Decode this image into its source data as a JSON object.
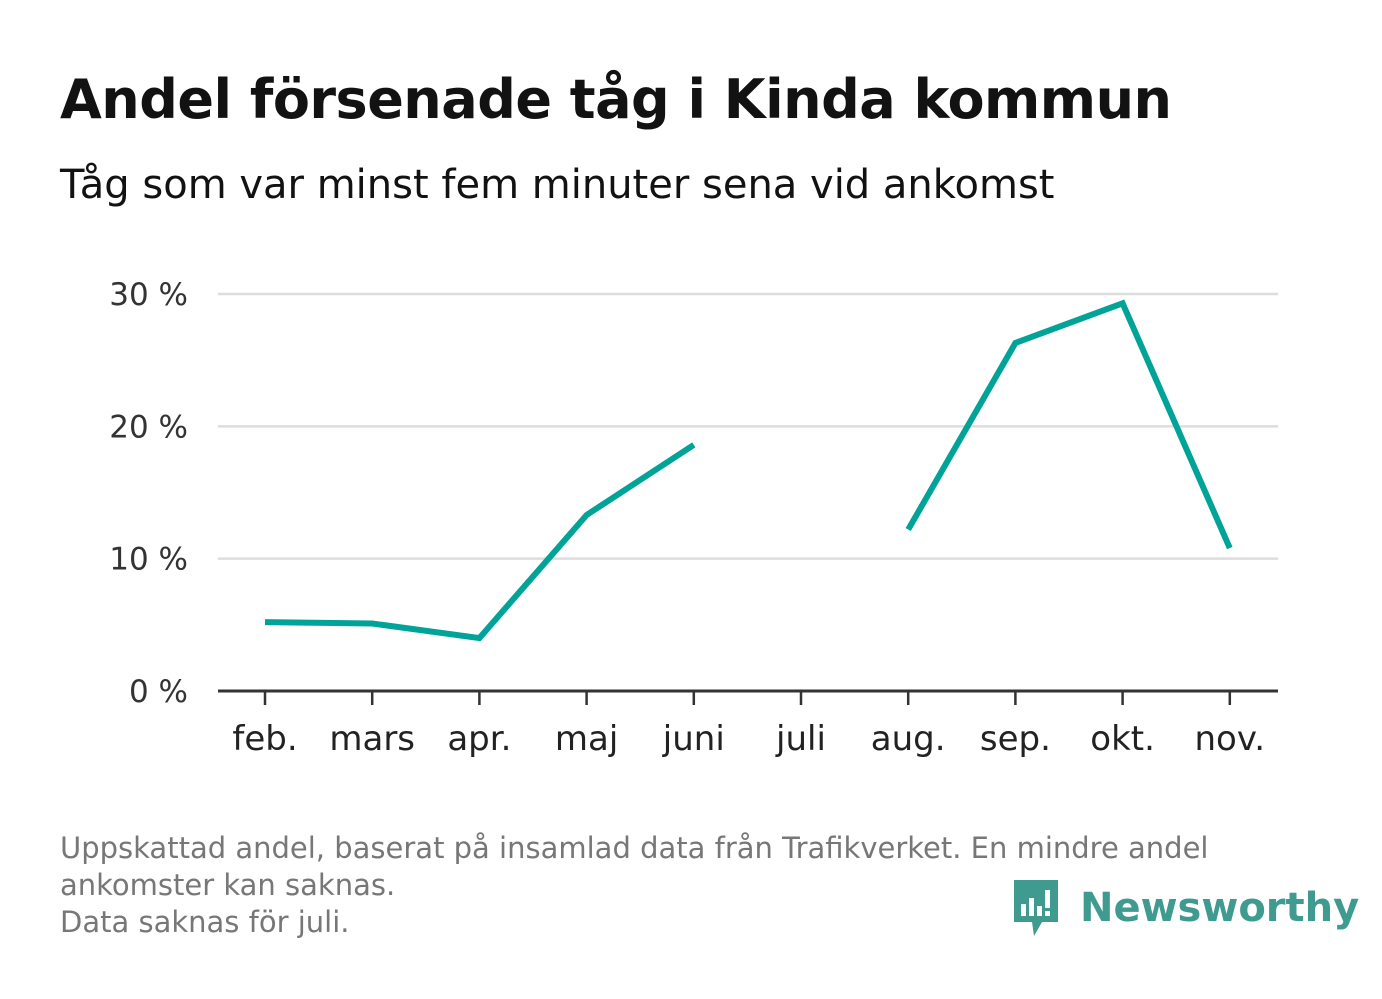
{
  "header": {
    "title": "Andel försenade tåg i Kinda kommun",
    "subtitle": "Tåg som var minst fem minuter sena vid ankomst"
  },
  "chart_data": {
    "type": "line",
    "title": "Andel försenade tåg i Kinda kommun",
    "subtitle": "Tåg som var minst fem minuter sena vid ankomst",
    "xlabel": "",
    "ylabel": "",
    "categories": [
      "feb.",
      "mars",
      "apr.",
      "maj",
      "juni",
      "juli",
      "aug.",
      "sep.",
      "okt.",
      "nov."
    ],
    "series": [
      {
        "values": [
          5.2,
          5.1,
          4.0,
          13.3,
          18.6,
          null,
          12.2,
          26.3,
          29.3,
          10.8
        ],
        "color": "#00a398"
      }
    ],
    "y_ticks": [
      0,
      10,
      20,
      30
    ],
    "y_tick_labels": [
      "0 %",
      "10 %",
      "20 %",
      "30 %"
    ],
    "ylim": [
      0,
      30
    ],
    "grid": true,
    "legend": "none"
  },
  "footer": {
    "note_line1": "Uppskattad andel, baserat på insamlad data från Trafikverket. En mindre andel",
    "note_line2": "ankomster kan saknas.",
    "note_line3": "Data saknas för juli.",
    "brand": "Newsworthy"
  },
  "colors": {
    "series": "#00a398",
    "grid": "#dddddd",
    "axis": "#333333",
    "brand": "#3f9a90",
    "footnote": "#777777"
  }
}
